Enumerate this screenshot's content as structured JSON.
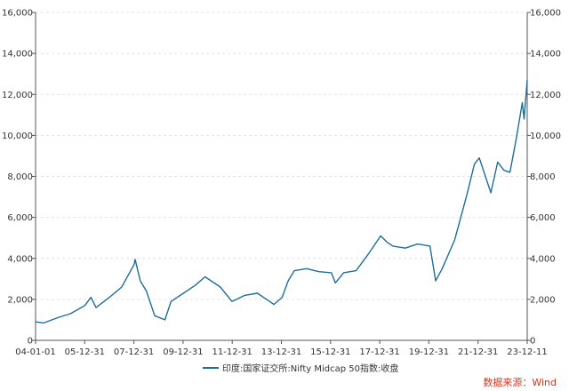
{
  "colors": {
    "series": "#1f6e97",
    "source": "#d9341f",
    "grid": "#e3e3e3"
  },
  "source": "数据来源：Wind",
  "chart_data": {
    "type": "line",
    "title": "",
    "xlabel": "",
    "ylabel": "",
    "x_ticks": [
      "04-01-01",
      "05-12-31",
      "07-12-31",
      "09-12-31",
      "11-12-31",
      "13-12-31",
      "15-12-31",
      "17-12-31",
      "19-12-31",
      "21-12-31",
      "23-12-11"
    ],
    "y_ticks": [
      "0",
      "2,000",
      "4,000",
      "6,000",
      "8,000",
      "10,000",
      "12,000",
      "14,000",
      "16,000"
    ],
    "ylim": [
      0,
      16000
    ],
    "xlim": [
      "2004-01-01",
      "2023-12-11"
    ],
    "grid": true,
    "legend_position": "bottom",
    "dual_y_axis": true,
    "series": [
      {
        "name": "印度:国家证交所:Nifty Midcap 50指数:收盘",
        "x": [
          "2004-01-01",
          "2004-05-01",
          "2004-09-01",
          "2005-01-01",
          "2005-06-01",
          "2005-12-31",
          "2006-04-01",
          "2006-06-15",
          "2006-12-31",
          "2007-06-30",
          "2007-12-31",
          "2008-01-15",
          "2008-03-31",
          "2008-06-30",
          "2008-10-31",
          "2009-03-31",
          "2009-06-30",
          "2009-12-31",
          "2010-06-30",
          "2010-11-15",
          "2011-06-30",
          "2011-12-20",
          "2012-06-30",
          "2012-12-31",
          "2013-06-30",
          "2013-08-31",
          "2013-12-31",
          "2014-03-31",
          "2014-06-30",
          "2014-12-31",
          "2015-06-30",
          "2015-12-31",
          "2016-02-28",
          "2016-06-30",
          "2016-12-31",
          "2017-06-30",
          "2017-12-31",
          "2018-03-31",
          "2018-06-30",
          "2018-12-31",
          "2019-06-30",
          "2019-12-31",
          "2020-03-24",
          "2020-06-30",
          "2020-12-31",
          "2021-06-30",
          "2021-10-20",
          "2021-12-31",
          "2022-06-20",
          "2022-09-30",
          "2022-12-31",
          "2023-03-31",
          "2023-06-30",
          "2023-09-30",
          "2023-10-26",
          "2023-12-11"
        ],
        "y": [
          900,
          850,
          1000,
          1150,
          1300,
          1700,
          2100,
          1600,
          2100,
          2600,
          3700,
          3950,
          2900,
          2400,
          1200,
          1000,
          1900,
          2300,
          2700,
          3100,
          2600,
          1900,
          2200,
          2300,
          1900,
          1750,
          2100,
          2900,
          3400,
          3500,
          3350,
          3300,
          2800,
          3300,
          3400,
          4200,
          5100,
          4800,
          4600,
          4500,
          4700,
          4600,
          2900,
          3500,
          4900,
          7100,
          8600,
          8900,
          7200,
          8700,
          8300,
          8200,
          9800,
          11600,
          10800,
          12700
        ]
      }
    ]
  }
}
